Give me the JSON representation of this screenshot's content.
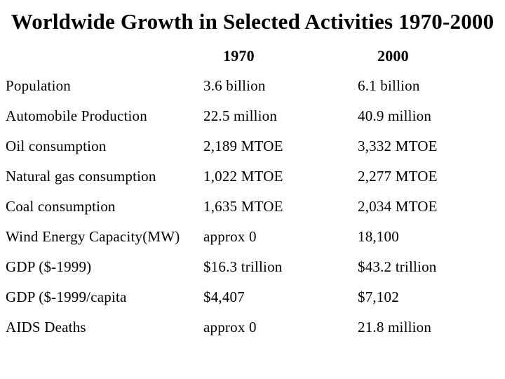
{
  "slide": {
    "title": "Worldwide Growth in Selected Activities 1970-2000",
    "background_color": "#ffffff",
    "text_color": "#000000"
  },
  "table": {
    "column_headers": [
      "1970",
      "2000"
    ],
    "rows": [
      {
        "label": "Population",
        "v1970": "3.6 billion",
        "v2000": "6.1 billion"
      },
      {
        "label": "Automobile Production",
        "v1970": "22.5 million",
        "v2000": "40.9 million"
      },
      {
        "label": "Oil consumption",
        "v1970": "2,189 MTOE",
        "v2000": "3,332 MTOE"
      },
      {
        "label": "Natural gas consumption",
        "v1970": "1,022 MTOE",
        "v2000": "2,277 MTOE"
      },
      {
        "label": "Coal consumption",
        "v1970": "1,635 MTOE",
        "v2000": "2,034 MTOE"
      },
      {
        "label": "Wind Energy Capacity(MW)",
        "v1970": "approx 0",
        "v2000": "18,100"
      },
      {
        "label": "GDP ($-1999)",
        "v1970": "$16.3 trillion",
        "v2000": "$43.2 trillion"
      },
      {
        "label": "GDP ($-1999/capita",
        "v1970": "$4,407",
        "v2000": "$7,102"
      },
      {
        "label": "AIDS Deaths",
        "v1970": "approx 0",
        "v2000": "21.8 million"
      }
    ]
  }
}
